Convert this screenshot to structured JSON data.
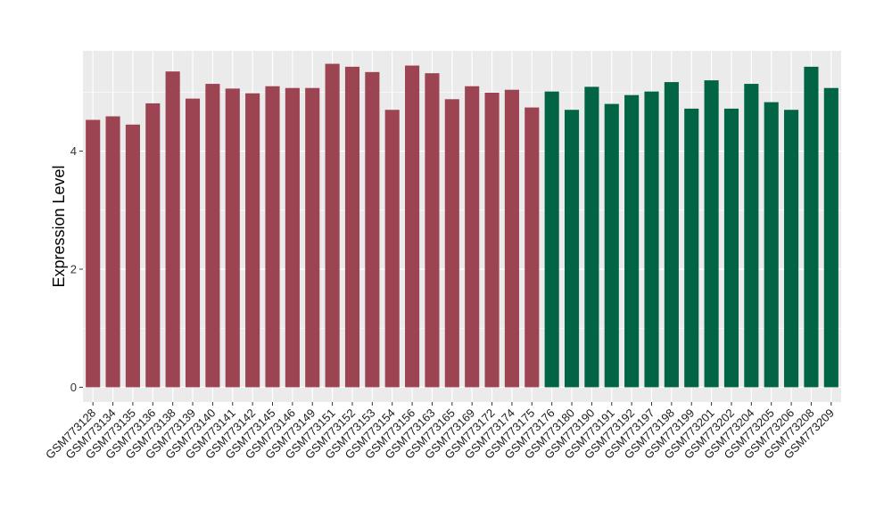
{
  "chart_data": {
    "type": "bar",
    "title": "",
    "xlabel": "",
    "ylabel": "Expression Level",
    "ylim": [
      -0.25,
      5.7
    ],
    "yticks": [
      0,
      2,
      4
    ],
    "grid": true,
    "legend": "none",
    "colors": {
      "group1": "#9c4452",
      "group2": "#006445",
      "panel": "#ebebeb",
      "grid": "#ffffff"
    },
    "categories": [
      "GSM773128",
      "GSM773134",
      "GSM773135",
      "GSM773136",
      "GSM773138",
      "GSM773139",
      "GSM773140",
      "GSM773141",
      "GSM773142",
      "GSM773145",
      "GSM773146",
      "GSM773149",
      "GSM773151",
      "GSM773152",
      "GSM773153",
      "GSM773154",
      "GSM773156",
      "GSM773163",
      "GSM773165",
      "GSM773169",
      "GSM773172",
      "GSM773174",
      "GSM773175",
      "GSM773176",
      "GSM773180",
      "GSM773190",
      "GSM773191",
      "GSM773192",
      "GSM773197",
      "GSM773198",
      "GSM773199",
      "GSM773201",
      "GSM773202",
      "GSM773204",
      "GSM773205",
      "GSM773206",
      "GSM773208",
      "GSM773209"
    ],
    "values": [
      4.53,
      4.59,
      4.45,
      4.81,
      5.35,
      4.89,
      5.14,
      5.06,
      4.98,
      5.1,
      5.07,
      5.07,
      5.48,
      5.43,
      5.34,
      4.7,
      5.45,
      5.32,
      4.88,
      5.1,
      4.99,
      5.04,
      4.74,
      5.01,
      4.7,
      5.09,
      4.8,
      4.95,
      5.01,
      5.17,
      4.72,
      5.2,
      4.72,
      5.14,
      4.83,
      4.7,
      5.43,
      5.07
    ],
    "groups": [
      1,
      1,
      1,
      1,
      1,
      1,
      1,
      1,
      1,
      1,
      1,
      1,
      1,
      1,
      1,
      1,
      1,
      1,
      1,
      1,
      1,
      1,
      1,
      2,
      2,
      2,
      2,
      2,
      2,
      2,
      2,
      2,
      2,
      2,
      2,
      2,
      2,
      2
    ]
  }
}
